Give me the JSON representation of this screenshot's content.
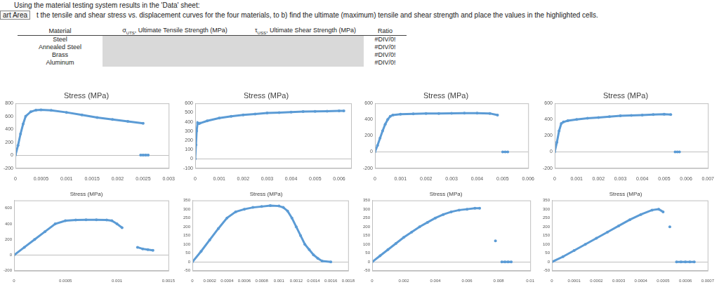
{
  "header": {
    "lines": [
      "Using the material testing system results in the 'Data' sheet:"
    ],
    "tab_label": "art Area",
    "instruction": "t the tensile and shear stress vs. displacement curves for the four materials, to b) find the ultimate (maximum) tensile and shear strength and place the values in the highlighted cells."
  },
  "table": {
    "columns": [
      {
        "text": "Material"
      },
      {
        "symbol": "σ",
        "subscript": "UTS",
        "text": ", Ultimate Tensile Strength (MPa)"
      },
      {
        "symbol": "τ",
        "subscript": "USS",
        "text": ", Ultimate Shear Strength (MPa)"
      },
      {
        "text": "Ratio"
      }
    ],
    "rows": [
      [
        "Steel",
        null,
        null,
        "#DIV/0!"
      ],
      [
        "Annealed Steel",
        null,
        null,
        "#DIV/0!"
      ],
      [
        "Brass",
        null,
        null,
        "#DIV/0!"
      ],
      [
        "Aluminum",
        null,
        null,
        "#DIV/0!"
      ]
    ]
  },
  "chart_data": [
    {
      "type": "scatter",
      "title": "Stress (MPa)",
      "color": "#5b9bd5",
      "marker": "circle",
      "line_style": "solid",
      "grid": false,
      "xlim": [
        0,
        0.003
      ],
      "xticks": [
        0,
        0.0005,
        0.001,
        0.0015,
        0.002,
        0.0025,
        0.003
      ],
      "ylim": [
        -200,
        800
      ],
      "yticks": [
        -200,
        0,
        200,
        400,
        600,
        800
      ],
      "x": [
        0,
        5e-05,
        0.0001,
        0.00015,
        0.0002,
        0.0003,
        0.0004,
        0.0005,
        0.0007,
        0.001,
        0.0013,
        0.0016,
        0.0019,
        0.0022,
        0.0025,
        0.0025,
        0.00245,
        0.0025,
        0.00255,
        0.0026
      ],
      "values": [
        0,
        150,
        330,
        480,
        600,
        670,
        695,
        700,
        690,
        660,
        620,
        580,
        550,
        520,
        490,
        null,
        0,
        0,
        0,
        0
      ]
    },
    {
      "type": "scatter",
      "title": "Stress (MPa)",
      "color": "#5b9bd5",
      "marker": "circle",
      "line_style": "solid",
      "grid": false,
      "xlim": [
        0,
        0.0065
      ],
      "xticks": [
        0,
        0.001,
        0.002,
        0.003,
        0.004,
        0.005,
        0.006
      ],
      "ylim": [
        -100,
        600
      ],
      "yticks": [
        -100,
        0,
        100,
        200,
        300,
        400,
        500,
        600
      ],
      "x": [
        0,
        3e-05,
        6e-05,
        0.0001,
        0.00015,
        0.0002,
        0.0005,
        0.001,
        0.0015,
        0.002,
        0.0025,
        0.003,
        0.0035,
        0.004,
        0.0045,
        0.005,
        0.0055,
        0.006,
        0.0062
      ],
      "values": [
        0,
        150,
        300,
        390,
        380,
        385,
        410,
        440,
        460,
        475,
        485,
        495,
        500,
        505,
        510,
        512,
        515,
        518,
        518
      ]
    },
    {
      "type": "scatter",
      "title": "Stress (MPa)",
      "color": "#5b9bd5",
      "marker": "circle",
      "line_style": "solid",
      "grid": false,
      "xlim": [
        0,
        0.006
      ],
      "xticks": [
        0,
        0.001,
        0.002,
        0.003,
        0.004,
        0.005,
        0.006
      ],
      "ylim": [
        -200,
        600
      ],
      "yticks": [
        -200,
        0,
        200,
        400,
        600
      ],
      "x": [
        0,
        0.0001,
        0.0002,
        0.0003,
        0.0004,
        0.0005,
        0.0006,
        0.0007,
        0.001,
        0.0015,
        0.002,
        0.0025,
        0.003,
        0.0035,
        0.004,
        0.0045,
        0.0048,
        0.0048,
        0.005,
        0.0051,
        0.0052
      ],
      "values": [
        0,
        80,
        170,
        260,
        340,
        400,
        440,
        455,
        465,
        470,
        473,
        475,
        477,
        478,
        478,
        475,
        455,
        null,
        0,
        0,
        0
      ]
    },
    {
      "type": "scatter",
      "title": "Stress (MPa)",
      "color": "#5b9bd5",
      "marker": "circle",
      "line_style": "solid",
      "grid": false,
      "xlim": [
        0,
        0.007
      ],
      "xticks": [
        0,
        0.001,
        0.002,
        0.003,
        0.004,
        0.005,
        0.006,
        0.007
      ],
      "ylim": [
        -200,
        600
      ],
      "yticks": [
        -200,
        0,
        200,
        400,
        600
      ],
      "x": [
        0,
        0.0001,
        0.0002,
        0.0003,
        0.0004,
        0.0006,
        0.001,
        0.0015,
        0.002,
        0.0025,
        0.003,
        0.0035,
        0.004,
        0.0045,
        0.005,
        0.0053,
        0.0053,
        0.0055,
        0.0056,
        0.0057
      ],
      "values": [
        0,
        120,
        260,
        350,
        370,
        385,
        400,
        415,
        425,
        435,
        445,
        450,
        455,
        460,
        465,
        462,
        null,
        0,
        0,
        0
      ]
    },
    {
      "type": "scatter",
      "title": "Stress (MPa)",
      "color": "#5b9bd5",
      "marker": "circle",
      "line_style": "solid",
      "grid": false,
      "xlim": [
        0,
        0.0015
      ],
      "xticks": [
        0,
        0.0005,
        0.001,
        0.0015
      ],
      "ylim": [
        -200,
        700
      ],
      "yticks": [
        -200,
        0,
        200,
        400,
        600
      ],
      "x": [
        0,
        0.0001,
        0.0002,
        0.0003,
        0.0004,
        0.0005,
        0.0006,
        0.0007,
        0.0008,
        0.0009,
        0.00095,
        0.001,
        0.00105,
        0.00105,
        0.0012,
        0.00125,
        0.0013,
        0.00135
      ],
      "values": [
        0,
        100,
        200,
        300,
        400,
        440,
        450,
        452,
        452,
        450,
        440,
        400,
        350,
        null,
        100,
        80,
        70,
        60
      ]
    },
    {
      "type": "scatter",
      "title": "Stress (MPa)",
      "color": "#5b9bd5",
      "marker": "circle",
      "line_style": "solid",
      "grid": false,
      "xlim": [
        0,
        0.0018
      ],
      "xticks": [
        0,
        0.0002,
        0.0004,
        0.0006,
        0.0008,
        0.001,
        0.0012,
        0.0014,
        0.0016,
        0.0018
      ],
      "ylim": [
        -50,
        350
      ],
      "yticks": [
        -50,
        0,
        50,
        100,
        150,
        200,
        250,
        300,
        350
      ],
      "x": [
        0,
        0.0001,
        0.0002,
        0.0003,
        0.0004,
        0.0005,
        0.0006,
        0.0007,
        0.0008,
        0.0009,
        0.001,
        0.00105,
        0.0011,
        0.00115,
        0.0012,
        0.00125,
        0.0013,
        0.00135,
        0.0014,
        0.00145,
        0.0015,
        0.0016
      ],
      "values": [
        0,
        60,
        125,
        190,
        250,
        285,
        300,
        310,
        315,
        320,
        318,
        310,
        290,
        250,
        200,
        150,
        100,
        70,
        40,
        20,
        5,
        0
      ]
    },
    {
      "type": "scatter",
      "title": "Stress (MPa)",
      "color": "#5b9bd5",
      "marker": "circle",
      "line_style": "solid",
      "grid": false,
      "xlim": [
        0,
        0.01
      ],
      "xticks": [
        0,
        0.002,
        0.004,
        0.006,
        0.008,
        0.01
      ],
      "ylim": [
        -50,
        350
      ],
      "yticks": [
        -50,
        0,
        50,
        100,
        150,
        200,
        250,
        300,
        350
      ],
      "x": [
        0,
        0.0005,
        0.001,
        0.0015,
        0.002,
        0.0025,
        0.003,
        0.0035,
        0.004,
        0.0045,
        0.005,
        0.0055,
        0.006,
        0.0065,
        0.0068,
        0.0068,
        0.0078,
        0.0078,
        0.0082,
        0.0084,
        0.0086,
        0.0088
      ],
      "values": [
        0,
        35,
        70,
        105,
        140,
        170,
        200,
        225,
        250,
        270,
        285,
        295,
        300,
        305,
        305,
        null,
        120,
        null,
        0,
        0,
        0,
        0
      ]
    },
    {
      "type": "scatter",
      "title": "Stress (MPa)",
      "color": "#5b9bd5",
      "marker": "circle",
      "line_style": "solid",
      "grid": false,
      "xlim": [
        0,
        0.0007
      ],
      "xticks": [
        0,
        0.0001,
        0.0002,
        0.0003,
        0.0004,
        0.0005,
        0.0006,
        0.0007
      ],
      "ylim": [
        -50,
        350
      ],
      "yticks": [
        -50,
        0,
        50,
        100,
        150,
        200,
        250,
        300,
        350
      ],
      "x": [
        0,
        5e-05,
        0.0001,
        0.00015,
        0.0002,
        0.00025,
        0.0003,
        0.00035,
        0.0004,
        0.00045,
        0.00048,
        0.0005,
        0.0005,
        0.00053,
        0.00053,
        0.00056,
        0.00058,
        0.0006,
        0.00062,
        0.00064
      ],
      "values": [
        0,
        30,
        65,
        100,
        135,
        170,
        205,
        240,
        270,
        295,
        300,
        285,
        null,
        200,
        null,
        0,
        0,
        0,
        0,
        0
      ]
    }
  ]
}
